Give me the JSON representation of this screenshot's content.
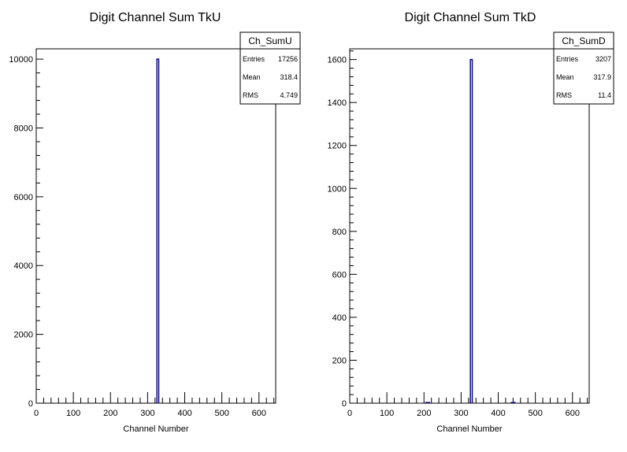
{
  "chart_data": [
    {
      "type": "bar",
      "title": "Digit Channel Sum TkU",
      "xlabel": "Channel Number",
      "ylabel": "",
      "xlim": [
        0,
        645
      ],
      "ylim": [
        0,
        10300
      ],
      "xticks": [
        0,
        100,
        200,
        300,
        400,
        500,
        600
      ],
      "yticks": [
        0,
        2000,
        4000,
        6000,
        8000,
        10000
      ],
      "grid": false,
      "line_color": "#000080",
      "bins": [
        {
          "x0": 325,
          "x1": 330,
          "value": 10000
        }
      ],
      "stats": {
        "name": "Ch_SumU",
        "rows": [
          {
            "label": "Entries",
            "value": "17256"
          },
          {
            "label": "Mean",
            "value": "318.4"
          },
          {
            "label": "RMS",
            "value": "4.749"
          }
        ]
      }
    },
    {
      "type": "bar",
      "title": "Digit Channel Sum TkD",
      "xlabel": "Channel Number",
      "ylabel": "",
      "xlim": [
        0,
        645
      ],
      "ylim": [
        0,
        1650
      ],
      "xticks": [
        0,
        100,
        200,
        300,
        400,
        500,
        600
      ],
      "yticks": [
        0,
        200,
        400,
        600,
        800,
        1000,
        1200,
        1400,
        1600
      ],
      "grid": false,
      "line_color": "#000080",
      "bins": [
        {
          "x0": 205,
          "x1": 215,
          "value": 3
        },
        {
          "x0": 325,
          "x1": 330,
          "value": 1600
        },
        {
          "x0": 435,
          "x1": 445,
          "value": 3
        }
      ],
      "stats": {
        "name": "Ch_SumD",
        "rows": [
          {
            "label": "Entries",
            "value": "3207"
          },
          {
            "label": "Mean",
            "value": "317.9"
          },
          {
            "label": "RMS",
            "value": "11.4"
          }
        ]
      }
    }
  ]
}
